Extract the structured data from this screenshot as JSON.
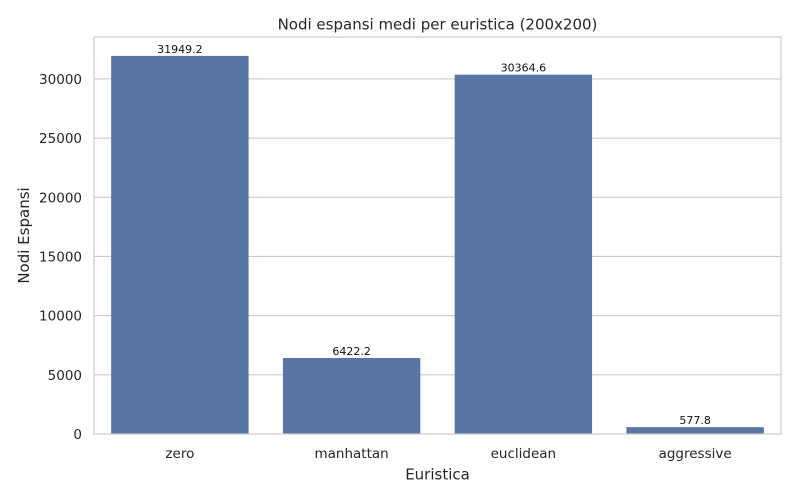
{
  "chart_data": {
    "type": "bar",
    "title": "Nodi espansi medi per euristica (200x200)",
    "xlabel": "Euristica",
    "ylabel": "Nodi Espansi",
    "categories": [
      "zero",
      "manhattan",
      "euclidean",
      "aggressive"
    ],
    "values": [
      31949.2,
      6422.2,
      30364.6,
      577.8
    ],
    "data_labels": [
      "31949.2",
      "6422.2",
      "30364.6",
      "577.8"
    ],
    "yticks": [
      0,
      5000,
      10000,
      15000,
      20000,
      25000,
      30000
    ],
    "ytick_labels": [
      "0",
      "5000",
      "10000",
      "15000",
      "20000",
      "25000",
      "30000"
    ],
    "ylim": [
      0,
      33546.66
    ],
    "grid": "horizontal",
    "bar_color": "#5875a4"
  }
}
